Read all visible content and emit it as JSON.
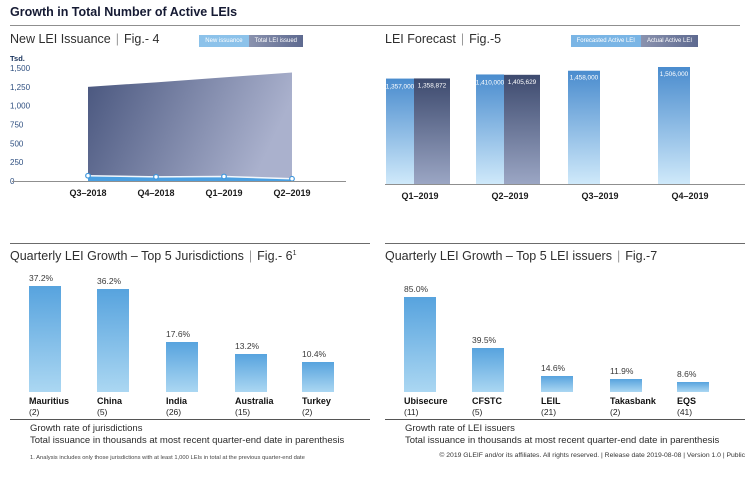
{
  "page": {
    "title": "Growth in Total Number of Active LEIs",
    "separator": "|",
    "footer": "© 2019 GLEIF and/or its affiliates. All rights reserved.  |  Release date 2019-08-08  |  Version 1.0  |  Public"
  },
  "sections": {
    "fig4": {
      "title": "New LEI Issuance",
      "fig": "Fig.- 4",
      "y_unit": "Tsd.",
      "legend": [
        "New issuance",
        "Total LEI issued"
      ]
    },
    "fig5": {
      "title": "LEI Forecast",
      "fig": "Fig.-5",
      "legend": [
        "Forecasted Active LEI",
        "Actual Active LEI"
      ]
    },
    "fig6": {
      "title": "Quarterly LEI Growth – Top 5 Jurisdictions",
      "fig": "Fig.- 6",
      "fig_sup": "1",
      "caption1": "Growth rate of jurisdictions",
      "caption2": "Total issuance in thousands at most recent quarter-end date in parenthesis",
      "footnote": "1. Analysis includes only those jurisdictions with at least 1,000 LEIs in total at the previous quarter-end date"
    },
    "fig7": {
      "title": "Quarterly LEI Growth – Top 5 LEI issuers",
      "fig": "Fig.-7",
      "caption1": "Growth rate of LEI issuers",
      "caption2": "Total issuance in thousands at most recent quarter-end date in parenthesis"
    }
  },
  "colors": {
    "accent_blue": "#4aa0e2",
    "mini_bar_top": "#57a3de",
    "mini_bar_bottom": "#abd7f2",
    "forecast_bar_top": "#4a8cce",
    "forecast_bar_bottom": "#cfe9fa",
    "actual_bar_top": "#3d4a6e",
    "actual_bar_bottom": "#9ba6c4",
    "area_dark_left": "#49567e",
    "area_dark_right": "#aab1cd",
    "legend_new_issuance": "#8cc2ea",
    "legend_forecast": "#7ab5e5",
    "legend_dark": "#5e6a90",
    "axis_gray": "#8f8f8f",
    "ytick_blue": "#2e4f80"
  },
  "chart_data": [
    {
      "type": "area",
      "figure": "Fig.- 4",
      "title": "New LEI Issuance",
      "y_unit": "Tsd.",
      "categories": [
        "Q3–2018",
        "Q4–2018",
        "Q1–2019",
        "Q2–2019"
      ],
      "series": [
        {
          "name": "New issuance",
          "values": [
            70,
            55,
            60,
            30
          ],
          "values_are_estimates": true
        },
        {
          "name": "Total LEI issued",
          "values": [
            1250,
            1310,
            1375,
            1440
          ],
          "values_are_estimates": true
        }
      ],
      "ylim": [
        0,
        1500
      ],
      "yticks": [
        0,
        250,
        500,
        750,
        1000,
        1250,
        1500
      ],
      "grid": false,
      "legend_position": "top-right"
    },
    {
      "type": "bar",
      "figure": "Fig.-5",
      "title": "LEI Forecast",
      "categories": [
        "Q1–2019",
        "Q2–2019",
        "Q3–2019",
        "Q4–2019"
      ],
      "series": [
        {
          "name": "Forecasted Active LEI",
          "values": [
            1357000,
            1410000,
            1458000,
            1506000
          ]
        },
        {
          "name": "Actual Active LEI",
          "values": [
            1358872,
            1405629,
            null,
            null
          ]
        }
      ],
      "data_labels": [
        [
          "1,357,000",
          "1,410,000",
          "1,458,000",
          "1,506,000"
        ],
        [
          "1,358,872",
          "1,405,629",
          null,
          null
        ]
      ],
      "grid": false,
      "legend_position": "top-right"
    },
    {
      "type": "bar",
      "figure": "Fig.- 6",
      "title": "Quarterly LEI Growth – Top 5 Jurisdictions",
      "categories": [
        "Mauritius",
        "China",
        "India",
        "Australia",
        "Turkey"
      ],
      "counts": [
        "(2)",
        "(5)",
        "(26)",
        "(15)",
        "(2)"
      ],
      "values": [
        37.2,
        36.2,
        17.6,
        13.2,
        10.4
      ],
      "value_labels": [
        "37.2%",
        "36.2%",
        "17.6%",
        "13.2%",
        "10.4%"
      ],
      "grid": false
    },
    {
      "type": "bar",
      "figure": "Fig.-7",
      "title": "Quarterly LEI Growth – Top 5 LEI issuers",
      "categories": [
        "Ubisecure",
        "CFSTC",
        "LEIL",
        "Takasbank",
        "EQS"
      ],
      "counts": [
        "(11)",
        "(5)",
        "(21)",
        "(2)",
        "(41)"
      ],
      "values": [
        85.0,
        39.5,
        14.6,
        11.9,
        8.6
      ],
      "value_labels": [
        "85.0%",
        "39.5%",
        "14.6%",
        "11.9%",
        "8.6%"
      ],
      "grid": false
    }
  ]
}
